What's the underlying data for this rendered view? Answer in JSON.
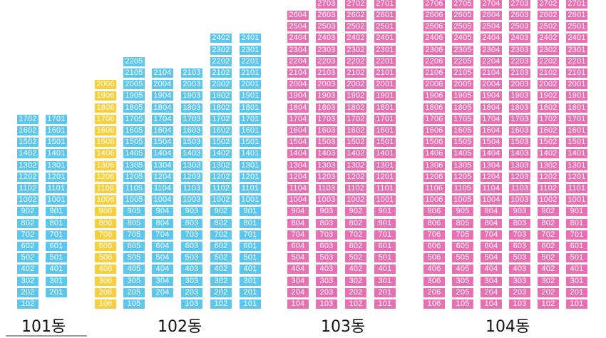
{
  "colors": {
    "blue": "#5bc6ee",
    "yellow": "#f5d03c",
    "pink": "#e76fb2"
  },
  "buildings": [
    {
      "label": "101동",
      "columns": [
        {
          "line": "02",
          "top": 17,
          "bottom": 1,
          "color": "blue"
        },
        {
          "line": "01",
          "top": 17,
          "bottom": 2,
          "color": "blue"
        }
      ]
    },
    {
      "label": "102동",
      "columns": [
        {
          "line": "06",
          "top": 20,
          "bottom": 1,
          "color": "yellow"
        },
        {
          "line": "05",
          "top": 22,
          "bottom": 1,
          "color": "blue"
        },
        {
          "line": "04",
          "top": 21,
          "bottom": 2,
          "color": "blue"
        },
        {
          "line": "03",
          "top": 21,
          "bottom": 1,
          "color": "blue"
        },
        {
          "line": "02",
          "top": 24,
          "bottom": 1,
          "color": "blue"
        },
        {
          "line": "01",
          "top": 24,
          "bottom": 1,
          "color": "blue"
        }
      ]
    },
    {
      "label": "103동",
      "columns": [
        {
          "line": "04",
          "top": 26,
          "bottom": 1,
          "color": "pink"
        },
        {
          "line": "03",
          "top": 27,
          "bottom": 1,
          "color": "pink"
        },
        {
          "line": "02",
          "top": 27,
          "bottom": 1,
          "color": "pink"
        },
        {
          "line": "01",
          "top": 27,
          "bottom": 1,
          "color": "pink"
        }
      ]
    },
    {
      "label": "104동",
      "columns": [
        {
          "line": "06",
          "top": 27,
          "bottom": 1,
          "color": "pink"
        },
        {
          "line": "05",
          "top": 27,
          "bottom": 1,
          "color": "pink"
        },
        {
          "line": "04",
          "top": 27,
          "bottom": 1,
          "color": "pink"
        },
        {
          "line": "03",
          "top": 27,
          "bottom": 1,
          "color": "pink"
        },
        {
          "line": "02",
          "top": 27,
          "bottom": 1,
          "color": "pink"
        },
        {
          "line": "01",
          "top": 27,
          "bottom": 1,
          "color": "pink"
        }
      ]
    }
  ]
}
